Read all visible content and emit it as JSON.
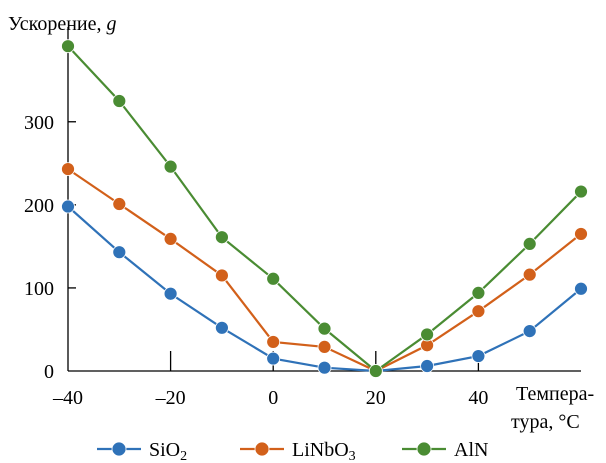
{
  "chart_data": {
    "type": "line",
    "ylabel": "Ускорение,",
    "ylabel_var": "g",
    "xlabel_line1": "Темпера-",
    "xlabel_line2": "тура, °C",
    "x": [
      -40,
      -30,
      -20,
      -10,
      0,
      10,
      20,
      30,
      40,
      50,
      60
    ],
    "xlim": [
      -40,
      60
    ],
    "ylim": [
      0,
      390
    ],
    "x_ticks": [
      -40,
      -20,
      0,
      20,
      40
    ],
    "x_tick_labels": [
      "–40",
      "–20",
      "0",
      "20",
      "40"
    ],
    "y_ticks": [
      0,
      100,
      200,
      300
    ],
    "y_tick_labels": [
      "0",
      "100",
      "200",
      "300"
    ],
    "grid": false,
    "legend_position": "bottom",
    "series": [
      {
        "name": "SiO",
        "name_sub": "2",
        "color": "#2f72b8",
        "values": [
          198,
          143,
          93,
          52,
          15,
          4,
          0,
          6,
          18,
          48,
          99
        ]
      },
      {
        "name": "LiNbO",
        "name_sub": "3",
        "color": "#d2601a",
        "values": [
          243,
          201,
          159,
          115,
          35,
          29,
          0,
          31,
          72,
          116,
          165
        ]
      },
      {
        "name": "AlN",
        "name_sub": "",
        "color": "#4a8c33",
        "values": [
          391,
          325,
          246,
          161,
          111,
          51,
          0,
          44,
          94,
          153,
          216
        ]
      }
    ]
  }
}
